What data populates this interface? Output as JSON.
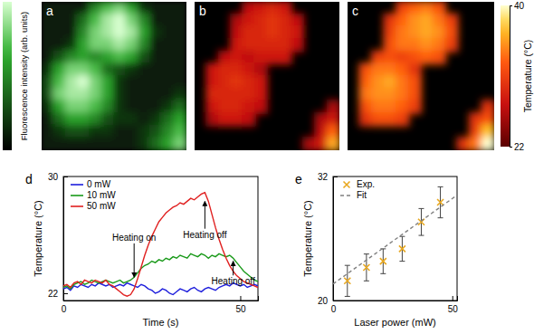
{
  "chart_data": [
    {
      "type": "heatmap",
      "panel_label": "a",
      "colorbar_label": "Fluorescence intensity (arb. units)",
      "zlim": [
        0,
        1
      ],
      "cells": [
        [
          0.1,
          0.1,
          0.1,
          0.1,
          0.5,
          0.7,
          0.8,
          0.6,
          0.2,
          0.1,
          0.1,
          0.1
        ],
        [
          0.1,
          0.1,
          0.1,
          0.4,
          0.7,
          0.9,
          1,
          0.8,
          0.5,
          0.1,
          0.1,
          0.1
        ],
        [
          0.1,
          0.1,
          0.1,
          0.5,
          0.8,
          0.9,
          1,
          0.9,
          0.6,
          0.2,
          0.1,
          0.1
        ],
        [
          0.1,
          0.1,
          0.2,
          0.6,
          0.8,
          0.8,
          0.9,
          0.8,
          0.5,
          0.1,
          0.1,
          0.1
        ],
        [
          0.1,
          0.3,
          0.5,
          0.6,
          0.5,
          0.6,
          0.7,
          0.6,
          0.3,
          0.1,
          0.1,
          0.1
        ],
        [
          0.2,
          0.6,
          0.8,
          0.8,
          0.7,
          0.4,
          0.3,
          0.2,
          0.1,
          0.1,
          0.1,
          0.1
        ],
        [
          0.3,
          0.7,
          0.9,
          1,
          0.8,
          0.6,
          0.2,
          0.1,
          0.1,
          0.1,
          0.1,
          0.1
        ],
        [
          0.3,
          0.8,
          0.9,
          0.9,
          0.8,
          0.6,
          0.2,
          0.1,
          0.1,
          0.1,
          0.1,
          0.2
        ],
        [
          0.2,
          0.6,
          0.8,
          0.8,
          0.7,
          0.5,
          0.2,
          0.1,
          0.1,
          0.1,
          0.2,
          0.4
        ],
        [
          0.1,
          0.4,
          0.6,
          0.6,
          0.5,
          0.3,
          0.2,
          0.2,
          0.1,
          0.2,
          0.4,
          0.6
        ],
        [
          0.1,
          0.2,
          0.3,
          0.3,
          0.2,
          0.2,
          0.1,
          0.1,
          0.2,
          0.3,
          0.5,
          0.7
        ],
        [
          0.1,
          0.1,
          0.1,
          0.1,
          0.1,
          0.1,
          0.1,
          0.1,
          0.2,
          0.4,
          0.6,
          0.8
        ]
      ]
    },
    {
      "type": "heatmap",
      "panel_label": "b",
      "zlim": [
        22,
        40
      ],
      "cells": [
        [
          null,
          null,
          null,
          null,
          27,
          28,
          29,
          28,
          null,
          null,
          null,
          null
        ],
        [
          null,
          null,
          null,
          26,
          28,
          29,
          30,
          29,
          27,
          null,
          null,
          null
        ],
        [
          null,
          null,
          null,
          27,
          29,
          29,
          30,
          29,
          28,
          null,
          null,
          null
        ],
        [
          null,
          null,
          null,
          28,
          29,
          29,
          29,
          29,
          27,
          null,
          null,
          null
        ],
        [
          null,
          null,
          27,
          28,
          27,
          28,
          28,
          28,
          null,
          null,
          null,
          null
        ],
        [
          null,
          28,
          29,
          29,
          28,
          26,
          null,
          null,
          null,
          null,
          null,
          null
        ],
        [
          null,
          28,
          29,
          30,
          29,
          28,
          null,
          null,
          null,
          null,
          null,
          null
        ],
        [
          null,
          29,
          29,
          29,
          29,
          28,
          null,
          null,
          null,
          null,
          null,
          null
        ],
        [
          null,
          28,
          29,
          29,
          28,
          27,
          null,
          null,
          null,
          null,
          null,
          26
        ],
        [
          null,
          26,
          28,
          28,
          27,
          null,
          null,
          null,
          null,
          null,
          26,
          28
        ],
        [
          null,
          null,
          null,
          null,
          null,
          null,
          null,
          null,
          null,
          null,
          27,
          33
        ],
        [
          null,
          null,
          null,
          null,
          null,
          null,
          null,
          null,
          null,
          26,
          28,
          36
        ]
      ]
    },
    {
      "type": "heatmap",
      "panel_label": "c",
      "colorbar_label": "Temperature (°C)",
      "zlim": [
        22,
        40
      ],
      "zticks": [
        22,
        40
      ],
      "cells": [
        [
          null,
          null,
          null,
          null,
          31,
          33,
          34,
          32,
          null,
          null,
          null,
          null
        ],
        [
          null,
          null,
          null,
          30,
          33,
          35,
          36,
          34,
          31,
          null,
          null,
          null
        ],
        [
          null,
          null,
          null,
          31,
          34,
          35,
          36,
          35,
          32,
          null,
          null,
          null
        ],
        [
          null,
          null,
          null,
          32,
          34,
          34,
          35,
          34,
          31,
          null,
          null,
          null
        ],
        [
          null,
          null,
          31,
          32,
          31,
          32,
          33,
          32,
          null,
          null,
          null,
          null
        ],
        [
          null,
          32,
          34,
          34,
          33,
          30,
          null,
          null,
          null,
          null,
          null,
          null
        ],
        [
          null,
          33,
          35,
          36,
          34,
          32,
          null,
          null,
          null,
          null,
          null,
          null
        ],
        [
          null,
          34,
          35,
          35,
          34,
          32,
          null,
          null,
          null,
          null,
          null,
          null
        ],
        [
          null,
          32,
          34,
          34,
          33,
          31,
          null,
          null,
          null,
          null,
          null,
          30
        ],
        [
          null,
          30,
          32,
          32,
          31,
          null,
          null,
          null,
          null,
          null,
          30,
          32
        ],
        [
          null,
          null,
          null,
          null,
          null,
          null,
          null,
          null,
          null,
          null,
          31,
          37
        ],
        [
          null,
          null,
          null,
          null,
          null,
          null,
          null,
          null,
          null,
          30,
          34,
          40
        ]
      ]
    },
    {
      "type": "line",
      "panel_label": "d",
      "xlabel": "Time (s)",
      "ylabel": "Temperature (°C)",
      "xlim": [
        0,
        55
      ],
      "xticks": [
        0,
        50
      ],
      "ylim": [
        21.5,
        30
      ],
      "yticks": [
        22,
        30
      ],
      "legend": "top-left",
      "x": [
        0,
        1,
        2,
        3,
        4,
        5,
        6,
        7,
        8,
        9,
        10,
        11,
        12,
        13,
        14,
        15,
        16,
        17,
        18,
        19,
        20,
        21,
        22,
        23,
        24,
        25,
        26,
        27,
        28,
        29,
        30,
        31,
        32,
        33,
        34,
        35,
        36,
        37,
        38,
        39,
        40,
        41,
        42,
        43,
        44,
        45,
        46,
        47,
        48,
        49,
        50,
        51,
        52,
        53,
        54,
        55
      ],
      "series": [
        {
          "name": "0 mW",
          "color": "#1f1fdc",
          "values": [
            22.3,
            22.4,
            22.2,
            22.5,
            22.4,
            22.6,
            22.5,
            22.4,
            22.6,
            22.5,
            22.7,
            22.6,
            22.5,
            22.6,
            22.4,
            22.5,
            22.6,
            22.5,
            22.7,
            22.6,
            22.5,
            22.4,
            22.6,
            22.5,
            22.3,
            22.2,
            22.0,
            22.1,
            22.3,
            22.2,
            22.0,
            21.9,
            22.1,
            22.3,
            22.2,
            22.1,
            22.3,
            22.4,
            22.2,
            22.1,
            22.3,
            22.4,
            22.3,
            22.2,
            22.4,
            22.5,
            22.6,
            22.5,
            22.7,
            22.6,
            22.5,
            22.6,
            22.4,
            22.5,
            22.6,
            22.5
          ]
        },
        {
          "name": "10 mW",
          "color": "#1a9a1a",
          "values": [
            22.4,
            22.5,
            22.3,
            22.6,
            22.7,
            22.8,
            22.6,
            22.7,
            22.9,
            22.8,
            22.7,
            22.8,
            22.9,
            22.8,
            22.7,
            22.8,
            22.9,
            22.7,
            22.8,
            22.9,
            23.1,
            23.4,
            23.7,
            23.9,
            24.0,
            24.2,
            24.1,
            24.3,
            24.2,
            24.4,
            24.3,
            24.5,
            24.4,
            24.6,
            24.5,
            24.4,
            24.7,
            24.6,
            24.5,
            24.7,
            24.6,
            24.4,
            24.6,
            24.5,
            24.7,
            24.6,
            24.5,
            24.6,
            24.4,
            24.1,
            23.8,
            23.5,
            23.3,
            23.1,
            22.9,
            22.8
          ]
        },
        {
          "name": "50 mW",
          "color": "#e02020",
          "values": [
            22.5,
            22.6,
            22.4,
            22.7,
            22.8,
            22.6,
            22.9,
            22.8,
            22.7,
            22.9,
            22.8,
            22.7,
            22.9,
            22.6,
            22.5,
            22.3,
            22.1,
            21.9,
            21.8,
            21.9,
            22.3,
            23.0,
            23.8,
            24.6,
            25.3,
            25.9,
            26.4,
            26.9,
            27.2,
            27.5,
            27.7,
            27.9,
            28.0,
            28.2,
            28.1,
            28.3,
            28.5,
            28.4,
            28.6,
            28.8,
            28.9,
            28.3,
            27.4,
            26.5,
            25.7,
            25.0,
            24.4,
            23.9,
            23.5,
            23.2,
            23.0,
            22.8,
            22.7,
            22.6,
            22.5,
            22.4
          ]
        }
      ],
      "annotations": [
        {
          "text": "Heating on",
          "x": 20,
          "y": 23.1,
          "text_y": 25.6
        },
        {
          "text": "Heating off",
          "x": 40,
          "y": 28.3,
          "text_y": 25.8
        },
        {
          "text": "Heating off",
          "x": 48,
          "y": 24.2,
          "text_y": 22.6
        }
      ]
    },
    {
      "type": "scatter",
      "panel_label": "e",
      "xlabel": "Laser power (mW)",
      "ylabel": "Temperature (°C)",
      "xlim": [
        0,
        52
      ],
      "xticks": [
        0,
        50
      ],
      "ylim": [
        20,
        32
      ],
      "yticks": [
        20,
        32
      ],
      "legend": "top-left",
      "series": [
        {
          "name": "Exp.",
          "type": "scatter",
          "marker": "x",
          "color": "#e8a820",
          "x": [
            6,
            14,
            21,
            29,
            37,
            45
          ],
          "values": [
            21.9,
            23.2,
            23.8,
            25.0,
            27.6,
            29.5
          ],
          "errors": [
            1.5,
            1.3,
            1.2,
            1.2,
            1.3,
            1.5
          ]
        },
        {
          "name": "Fit",
          "type": "line",
          "line_style": "dashed",
          "color": "#808080",
          "x": [
            0,
            52
          ],
          "values": [
            21.6,
            30.2
          ]
        }
      ]
    }
  ]
}
